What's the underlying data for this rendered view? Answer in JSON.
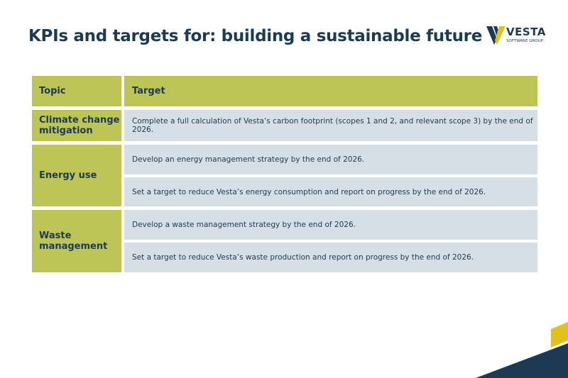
{
  "header": {
    "title": "KPIs and targets for: building a sustainable future"
  },
  "logo": {
    "name": "VESTA",
    "tagline": "SOFTWARE GROUP"
  },
  "table": {
    "columns": [
      "Topic",
      "Target"
    ],
    "rows": [
      {
        "topic": "Climate change mitigation",
        "targets": [
          "Complete a full calculation of Vesta’s carbon footprint (scopes 1 and 2, and relevant scope 3) by the end of 2026."
        ]
      },
      {
        "topic": "Energy use",
        "targets": [
          "Develop an energy management strategy by the end of 2026.",
          "Set a target to reduce Vesta’s energy consumption and report on progress by the end of 2026."
        ]
      },
      {
        "topic": "Waste management",
        "targets": [
          "Develop a waste management strategy by the end of 2026.",
          "Set a target to reduce Vesta’s waste production and report on progress by the end of 2026."
        ]
      }
    ]
  }
}
